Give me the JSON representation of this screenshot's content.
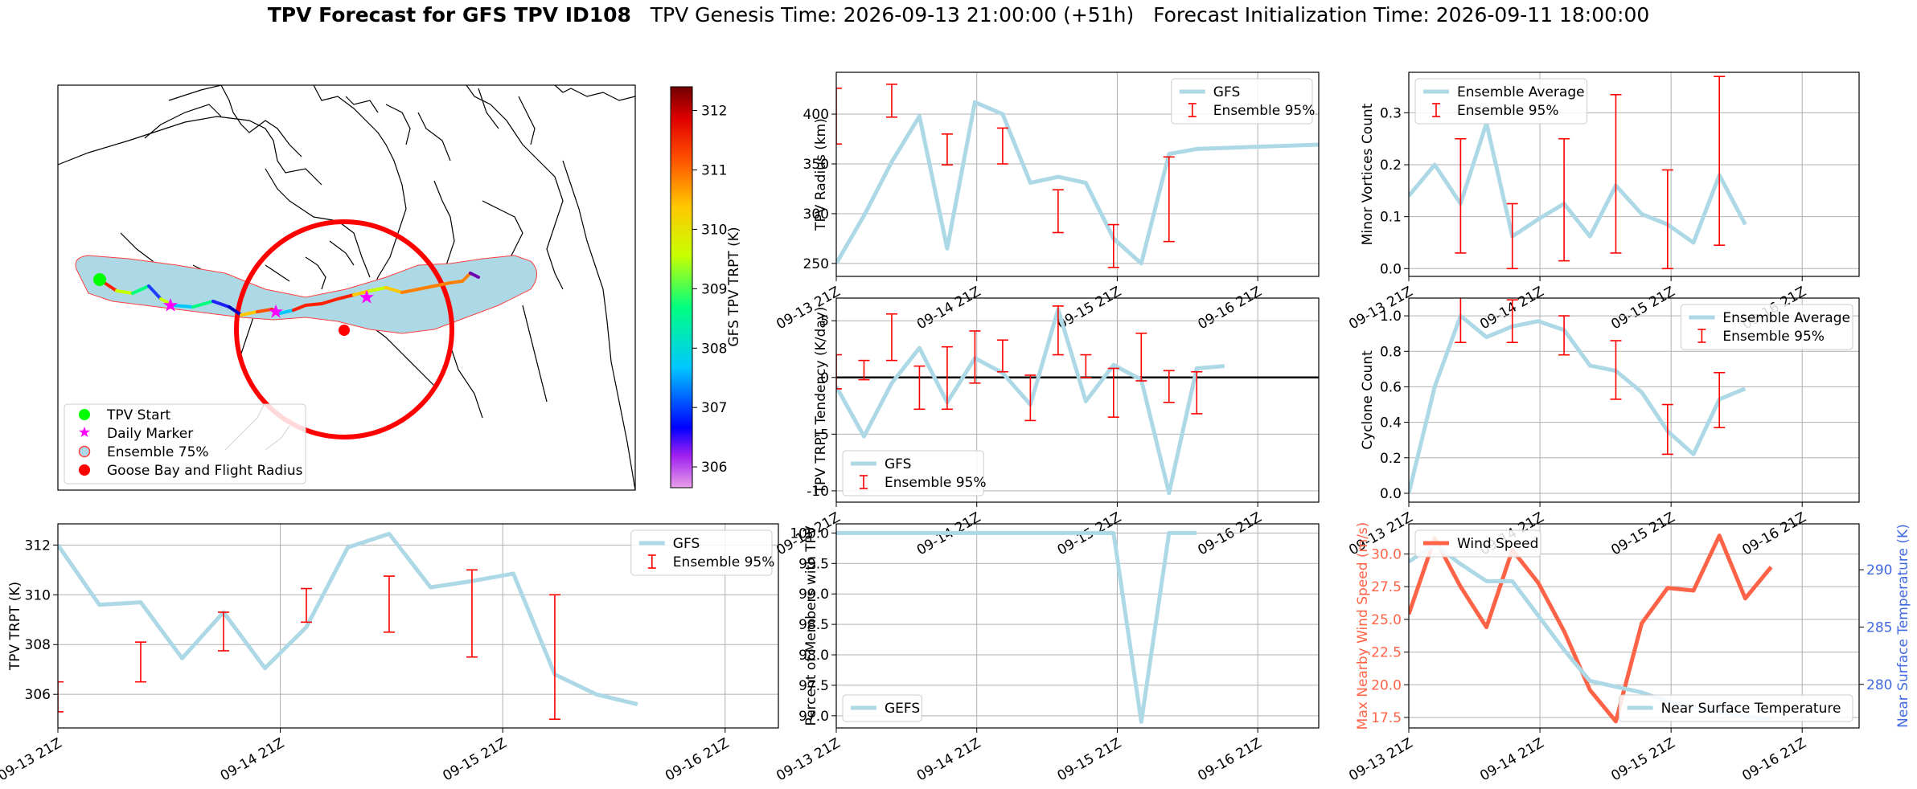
{
  "title": {
    "main": "TPV Forecast for GFS TPV ID108",
    "genesis": "TPV Genesis Time: 2026-09-13 21:00:00 (+51h)",
    "init": "Forecast Initialization Time: 2026-09-11 18:00:00"
  },
  "colors": {
    "gfs_line": "#add8e6",
    "ensemble_bar": "#ff0000",
    "wind": "#ff6347",
    "temp_axis": "#4169e1",
    "ensemble75_fill": "#add8e6",
    "flight_radius": "#ff0000",
    "start_marker": "#00ff00",
    "daily_marker": "#ff00ff"
  },
  "x_ticks": [
    "09-13 21Z",
    "09-14 21Z",
    "09-15 21Z",
    "09-16 21Z"
  ],
  "map": {
    "legend": [
      "TPV Start",
      "Daily Marker",
      "Ensemble 75%",
      "Goose Bay and Flight Radius"
    ],
    "colorbar": {
      "label": "GFS TPV TRPT (K)",
      "ticks": [
        "306",
        "307",
        "308",
        "309",
        "310",
        "311",
        "312"
      ],
      "range": [
        305.65,
        312.4
      ]
    }
  },
  "chart_data": [
    {
      "id": "radius",
      "type": "line",
      "ylabel": "TPV Radius (km)",
      "ylim": [
        237,
        442
      ],
      "yticks": [
        250,
        300,
        350,
        400
      ],
      "xlim": [
        0,
        17.4
      ],
      "series": [
        {
          "name": "GFS",
          "x": [
            0,
            1,
            2,
            3,
            4,
            5,
            6,
            7,
            8,
            9,
            10,
            11,
            12,
            13,
            14,
            15,
            16,
            17,
            18
          ],
          "y": [
            250,
            298,
            352,
            398,
            265,
            412,
            400,
            331,
            337,
            331,
            275,
            250,
            360,
            365,
            366,
            367,
            368,
            369,
            370
          ]
        }
      ],
      "errorbars": {
        "name": "Ensemble 95%",
        "x": [
          0,
          2,
          4,
          6,
          8,
          10,
          12
        ],
        "low": [
          370,
          397,
          349,
          350,
          281,
          246,
          272
        ],
        "high": [
          426,
          430,
          380,
          386,
          324,
          289,
          357
        ]
      },
      "legend_pos": "top-right",
      "grid": true
    },
    {
      "id": "minor_vortices",
      "type": "line",
      "ylabel": "Minor Vortices Count",
      "ylim": [
        -0.015,
        0.378
      ],
      "yticks": [
        0.0,
        0.1,
        0.2,
        0.3
      ],
      "xlim": [
        0,
        17.4
      ],
      "series": [
        {
          "name": "Ensemble Average",
          "x": [
            0,
            1,
            2,
            3,
            4,
            5,
            6,
            7,
            8,
            9,
            10,
            11,
            12,
            13
          ],
          "y": [
            0.14,
            0.2,
            0.125,
            0.28,
            0.062,
            0.095,
            0.125,
            0.062,
            0.16,
            0.105,
            0.085,
            0.05,
            0.18,
            0.085
          ]
        }
      ],
      "errorbars": {
        "name": "Ensemble 95%",
        "x": [
          2,
          4,
          6,
          8,
          10,
          12
        ],
        "low": [
          0.03,
          0.0,
          0.015,
          0.03,
          0.0,
          0.045
        ],
        "high": [
          0.25,
          0.125,
          0.25,
          0.335,
          0.19,
          0.37
        ]
      },
      "legend_pos": "top-left",
      "grid": true
    },
    {
      "id": "tendency",
      "type": "line",
      "ylabel": "TPV TRPT Tendency (K/day)",
      "ylim": [
        -11,
        7
      ],
      "yticks": [
        -10,
        -5,
        0,
        5
      ],
      "xlim": [
        0,
        17.4
      ],
      "zero_line": true,
      "series": [
        {
          "name": "GFS",
          "x": [
            0,
            1,
            2,
            3,
            4,
            5,
            6,
            7,
            8,
            9,
            10,
            11,
            12,
            13,
            14
          ],
          "y": [
            -0.8,
            -5.2,
            -0.5,
            2.6,
            -2.2,
            1.7,
            0.4,
            -2.4,
            6,
            -2.1,
            1.1,
            -0.2,
            -10.2,
            0.8,
            1
          ]
        }
      ],
      "errorbars": {
        "name": "Ensemble 95%",
        "x": [
          0,
          1,
          2,
          3,
          4,
          5,
          6,
          7,
          8,
          9,
          10,
          11,
          12,
          13
        ],
        "low": [
          -1,
          -0.2,
          1.5,
          -2.8,
          -2.8,
          -0.5,
          0.5,
          -3.8,
          2,
          0,
          -3.5,
          -0.3,
          -2.2,
          -3.2
        ],
        "high": [
          2,
          1.5,
          5.6,
          1,
          2.7,
          4.1,
          3.3,
          0.2,
          6.3,
          2,
          0.8,
          3.9,
          0.6,
          0.5
        ]
      },
      "legend_pos": "bottom-left",
      "grid": true
    },
    {
      "id": "cyclone_count",
      "type": "line",
      "ylabel": "Cyclone Count",
      "ylim": [
        -0.05,
        1.1
      ],
      "yticks": [
        0.0,
        0.2,
        0.4,
        0.6,
        0.8,
        1.0
      ],
      "xlim": [
        0,
        17.4
      ],
      "series": [
        {
          "name": "Ensemble Average",
          "x": [
            0,
            1,
            2,
            3,
            4,
            5,
            6,
            7,
            8,
            9,
            10,
            11,
            12,
            13
          ],
          "y": [
            0,
            0.6,
            1.0,
            0.88,
            0.94,
            0.97,
            0.92,
            0.72,
            0.69,
            0.57,
            0.35,
            0.22,
            0.53,
            0.59
          ]
        }
      ],
      "errorbars": {
        "name": "Ensemble 95%",
        "x": [
          2,
          4,
          6,
          8,
          10,
          12
        ],
        "low": [
          0.85,
          0.85,
          0.78,
          0.53,
          0.22,
          0.37
        ],
        "high": [
          1.12,
          1.09,
          1.0,
          0.86,
          0.5,
          0.68
        ]
      },
      "legend_pos": "top-right",
      "grid": true
    },
    {
      "id": "trpt",
      "type": "line",
      "ylabel": "TPV TRPT (K)",
      "ylim": [
        304.65,
        312.85
      ],
      "yticks": [
        306,
        308,
        310,
        312
      ],
      "xlim": [
        0,
        17.4
      ],
      "series": [
        {
          "name": "GFS",
          "x": [
            0,
            1,
            2,
            3,
            4,
            5,
            6,
            7,
            8,
            9,
            10,
            11,
            12,
            13,
            14
          ],
          "y": [
            312,
            309.6,
            309.7,
            307.45,
            309.3,
            307.05,
            308.7,
            311.9,
            312.45,
            310.3,
            310.55,
            310.85,
            306.8,
            306,
            305.6
          ]
        }
      ],
      "errorbars": {
        "name": "Ensemble 95%",
        "x": [
          0,
          2,
          4,
          6,
          8,
          10,
          12
        ],
        "low": [
          305.3,
          306.5,
          307.75,
          308.9,
          308.5,
          307.5,
          305
        ],
        "high": [
          306.5,
          308.1,
          309.3,
          310.25,
          310.75,
          311,
          310
        ]
      },
      "legend_pos": "top-right",
      "grid": true
    },
    {
      "id": "percent_members",
      "type": "line",
      "ylabel": "Percent of Members with TPV",
      "ylim": [
        96.8,
        100.15
      ],
      "yticks": [
        97.0,
        97.5,
        98.0,
        98.5,
        99.0,
        99.5,
        100.0
      ],
      "xlim": [
        0,
        17.4
      ],
      "series": [
        {
          "name": "GEFS",
          "x": [
            0,
            1,
            2,
            3,
            4,
            5,
            6,
            7,
            8,
            9,
            10,
            11,
            12,
            13
          ],
          "y": [
            100,
            100,
            100,
            100,
            100,
            100,
            100,
            100,
            100,
            100,
            100,
            96.9,
            100,
            100
          ]
        }
      ],
      "legend_pos": "bottom-left",
      "grid": true
    },
    {
      "id": "wind_temp",
      "type": "line",
      "ylabel": "Max Nearby Wind Speed (m/s)",
      "ylabel_right": "Near Surface Temperature (K)",
      "ylim": [
        16.7,
        32.3
      ],
      "yticks": [
        17.5,
        20.0,
        22.5,
        25.0,
        27.5,
        30.0
      ],
      "ylim_right": [
        276.2,
        294
      ],
      "yticks_right": [
        280,
        285,
        290
      ],
      "xlim": [
        0,
        17.4
      ],
      "series": [
        {
          "name": "Wind Speed",
          "axis": "left",
          "x": [
            0,
            1,
            2,
            3,
            4,
            5,
            6,
            7,
            8,
            9,
            10,
            11,
            12,
            13,
            14
          ],
          "y": [
            25.4,
            31.2,
            27.5,
            24.4,
            30.3,
            27.8,
            24.1,
            19.6,
            17.2,
            24.7,
            27.4,
            27.2,
            31.4,
            26.6,
            29
          ]
        },
        {
          "name": "Near Surface Temperature",
          "axis": "right",
          "x": [
            0,
            1,
            2,
            3,
            4,
            5,
            6,
            7,
            8,
            9,
            10,
            11,
            12,
            13,
            14
          ],
          "y": [
            290.7,
            292.2,
            290.5,
            289,
            289,
            286,
            283,
            280.3,
            279.8,
            279.3,
            278.5,
            278,
            277.6,
            277.2,
            277
          ]
        }
      ],
      "legend_pos": [
        "top-left",
        "bottom-right"
      ],
      "grid": true
    }
  ]
}
